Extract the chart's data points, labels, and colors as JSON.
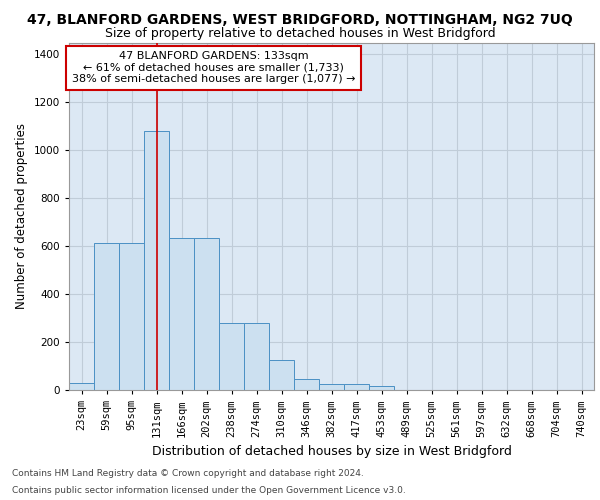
{
  "title": "47, BLANFORD GARDENS, WEST BRIDGFORD, NOTTINGHAM, NG2 7UQ",
  "subtitle": "Size of property relative to detached houses in West Bridgford",
  "xlabel": "Distribution of detached houses by size in West Bridgford",
  "ylabel": "Number of detached properties",
  "footer_line1": "Contains HM Land Registry data © Crown copyright and database right 2024.",
  "footer_line2": "Contains public sector information licensed under the Open Government Licence v3.0.",
  "bin_labels": [
    "23sqm",
    "59sqm",
    "95sqm",
    "131sqm",
    "166sqm",
    "202sqm",
    "238sqm",
    "274sqm",
    "310sqm",
    "346sqm",
    "382sqm",
    "417sqm",
    "453sqm",
    "489sqm",
    "525sqm",
    "561sqm",
    "597sqm",
    "632sqm",
    "668sqm",
    "704sqm",
    "740sqm"
  ],
  "bar_heights": [
    30,
    615,
    615,
    1080,
    635,
    635,
    280,
    280,
    125,
    45,
    25,
    25,
    15,
    0,
    0,
    0,
    0,
    0,
    0,
    0,
    0
  ],
  "bar_color": "#cce0f0",
  "bar_edge_color": "#4a90c4",
  "red_line_index": 3,
  "red_line_color": "#cc0000",
  "annotation_text": "47 BLANFORD GARDENS: 133sqm\n← 61% of detached houses are smaller (1,733)\n38% of semi-detached houses are larger (1,077) →",
  "annotation_box_color": "#cc0000",
  "ylim": [
    0,
    1450
  ],
  "yticks": [
    0,
    200,
    400,
    600,
    800,
    1000,
    1200,
    1400
  ],
  "grid_color": "#c0ccd8",
  "background_color": "#dce8f4",
  "title_fontsize": 10,
  "subtitle_fontsize": 9,
  "xlabel_fontsize": 9,
  "ylabel_fontsize": 8.5,
  "tick_fontsize": 7.5,
  "annotation_fontsize": 8,
  "footer_fontsize": 6.5
}
